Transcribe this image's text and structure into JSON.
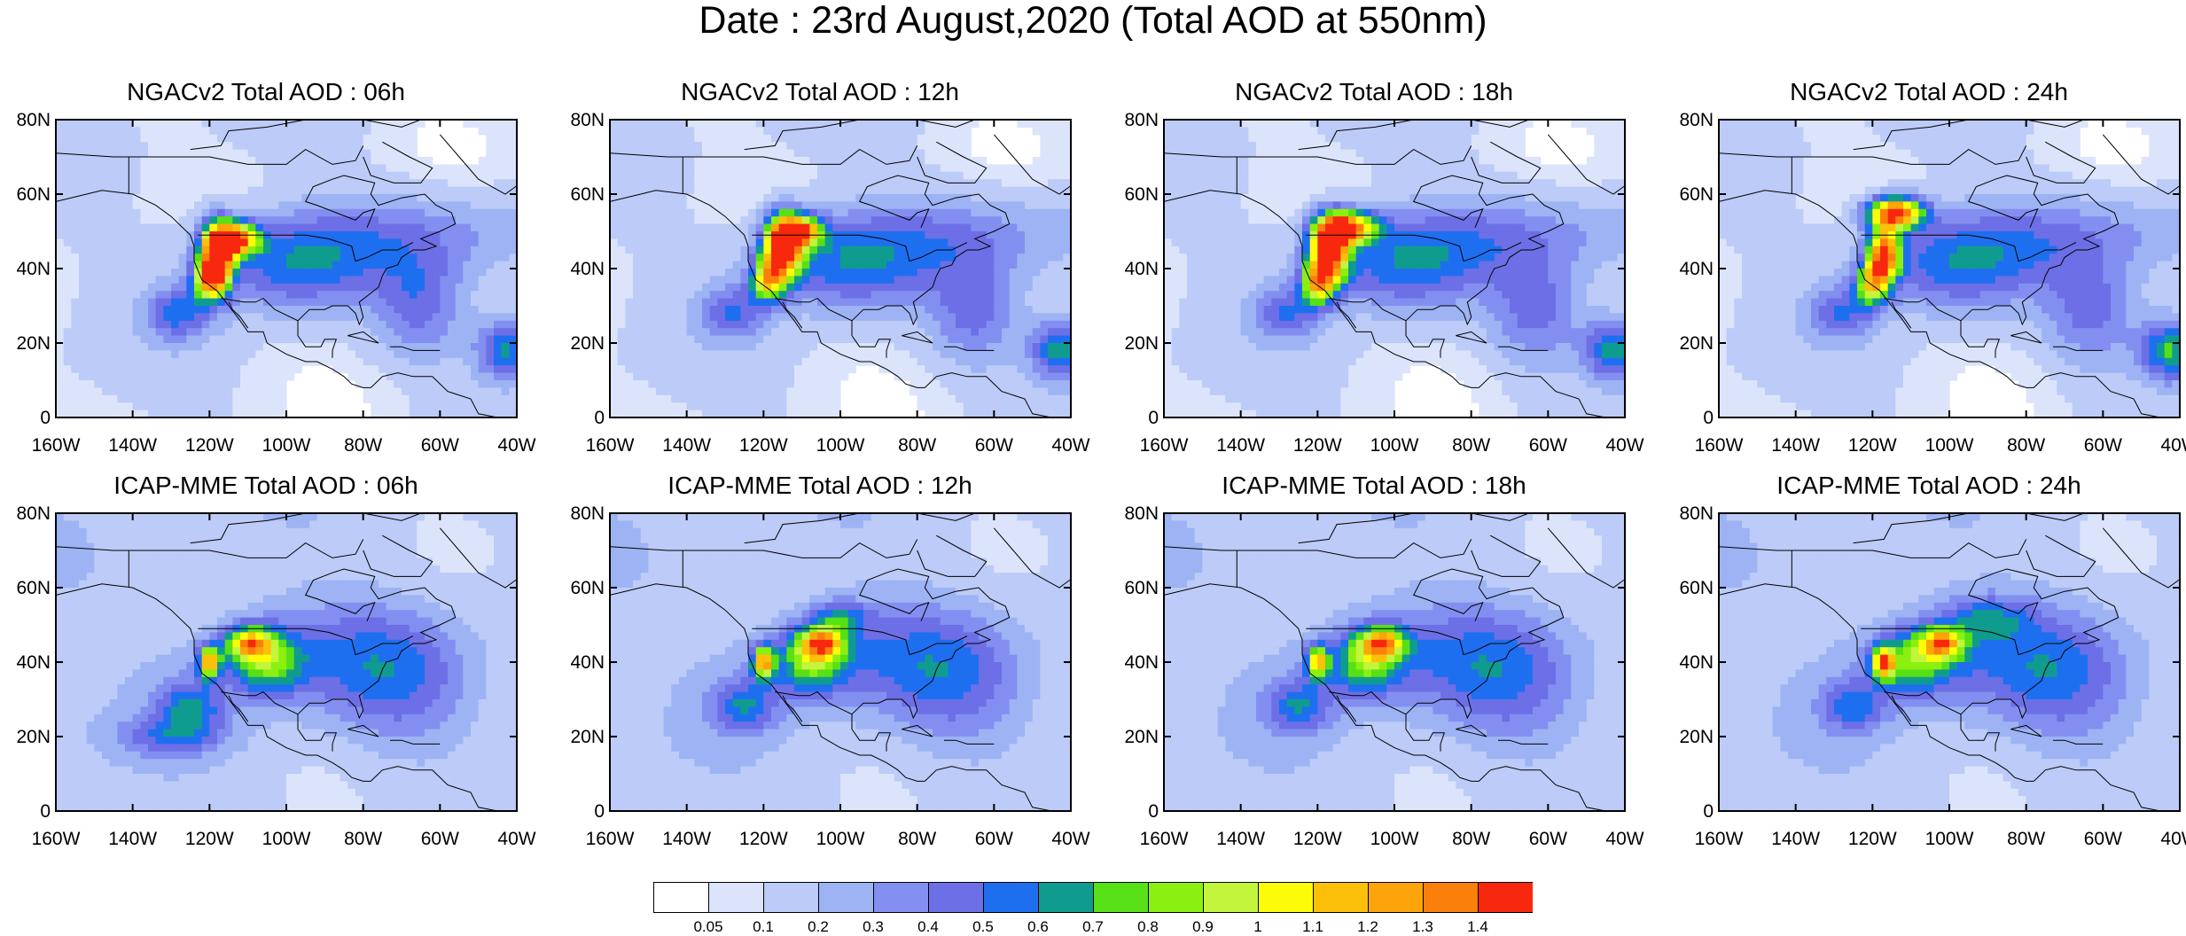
{
  "title": "Date : 23rd August,2020 (Total AOD at 550nm)",
  "colorbar": {
    "levels": [
      "0.05",
      "0.1",
      "0.2",
      "0.3",
      "0.4",
      "0.5",
      "0.6",
      "0.7",
      "0.8",
      "0.9",
      "1",
      "1.1",
      "1.2",
      "1.3",
      "1.4"
    ],
    "colors": [
      "#ffffff",
      "#dbe4fb",
      "#bccbf7",
      "#9db3f4",
      "#838ff0",
      "#6d6fe6",
      "#1e6ff0",
      "#0f9c8f",
      "#57e016",
      "#8bf00f",
      "#c2f53b",
      "#fcfc08",
      "#fcc00a",
      "#fca40a",
      "#fb800b",
      "#f8280e"
    ]
  },
  "axes": {
    "x_ticks": [
      "160W",
      "140W",
      "120W",
      "100W",
      "80W",
      "60W",
      "40W"
    ],
    "y_ticks": [
      "80N",
      "60N",
      "40N",
      "20N",
      "0"
    ]
  },
  "chart_data": [
    {
      "type": "heatmap",
      "title": "NGACv2 Total AOD : 06h",
      "xlim": [
        -160,
        -40
      ],
      "ylim": [
        0,
        80
      ],
      "background_aod": 0.1,
      "plumes": [
        {
          "lon": -118,
          "lat": 44,
          "aod": 1.4,
          "sx": 3,
          "sy": 6
        },
        {
          "lon": -113,
          "lat": 48,
          "aod": 1.2,
          "sx": 4,
          "sy": 3
        },
        {
          "lon": -120,
          "lat": 37,
          "aod": 0.8,
          "sx": 3,
          "sy": 4
        },
        {
          "lon": -128,
          "lat": 28,
          "aod": 0.4,
          "sx": 6,
          "sy": 5
        },
        {
          "lon": -95,
          "lat": 45,
          "aod": 0.3,
          "sx": 18,
          "sy": 8
        },
        {
          "lon": -65,
          "lat": 30,
          "aod": 0.3,
          "sx": 8,
          "sy": 10
        },
        {
          "lon": -42,
          "lat": 18,
          "aod": 0.55,
          "sx": 6,
          "sy": 6
        },
        {
          "lon": -100,
          "lat": 38,
          "aod": 0.25,
          "sx": 14,
          "sy": 8
        },
        {
          "lon": -60,
          "lat": 50,
          "aod": 0.2,
          "sx": 25,
          "sy": 8
        }
      ]
    },
    {
      "type": "heatmap",
      "title": "NGACv2 Total AOD : 12h",
      "xlim": [
        -160,
        -40
      ],
      "ylim": [
        0,
        80
      ],
      "background_aod": 0.1,
      "plumes": [
        {
          "lon": -115,
          "lat": 46,
          "aod": 1.4,
          "sx": 3.5,
          "sy": 6
        },
        {
          "lon": -110,
          "lat": 50,
          "aod": 1.0,
          "sx": 4,
          "sy": 3
        },
        {
          "lon": -119,
          "lat": 37,
          "aod": 0.8,
          "sx": 3,
          "sy": 4
        },
        {
          "lon": -128,
          "lat": 28,
          "aod": 0.35,
          "sx": 6,
          "sy": 5
        },
        {
          "lon": -95,
          "lat": 45,
          "aod": 0.3,
          "sx": 18,
          "sy": 8
        },
        {
          "lon": -65,
          "lat": 28,
          "aod": 0.3,
          "sx": 8,
          "sy": 10
        },
        {
          "lon": -42,
          "lat": 18,
          "aod": 0.6,
          "sx": 6,
          "sy": 6
        },
        {
          "lon": -100,
          "lat": 38,
          "aod": 0.25,
          "sx": 14,
          "sy": 8
        },
        {
          "lon": -60,
          "lat": 50,
          "aod": 0.2,
          "sx": 25,
          "sy": 8
        }
      ]
    },
    {
      "type": "heatmap",
      "title": "NGACv2 Total AOD : 18h",
      "xlim": [
        -160,
        -40
      ],
      "ylim": [
        0,
        80
      ],
      "background_aod": 0.1,
      "plumes": [
        {
          "lon": -117,
          "lat": 45,
          "aod": 1.4,
          "sx": 3.5,
          "sy": 6
        },
        {
          "lon": -112,
          "lat": 51,
          "aod": 1.2,
          "sx": 5,
          "sy": 3
        },
        {
          "lon": -120,
          "lat": 36,
          "aod": 0.8,
          "sx": 3,
          "sy": 4
        },
        {
          "lon": -128,
          "lat": 28,
          "aod": 0.35,
          "sx": 6,
          "sy": 5
        },
        {
          "lon": -95,
          "lat": 45,
          "aod": 0.3,
          "sx": 18,
          "sy": 8
        },
        {
          "lon": -63,
          "lat": 28,
          "aod": 0.3,
          "sx": 8,
          "sy": 10
        },
        {
          "lon": -42,
          "lat": 18,
          "aod": 0.6,
          "sx": 6,
          "sy": 6
        },
        {
          "lon": -100,
          "lat": 38,
          "aod": 0.25,
          "sx": 14,
          "sy": 8
        },
        {
          "lon": -60,
          "lat": 50,
          "aod": 0.2,
          "sx": 25,
          "sy": 8
        }
      ]
    },
    {
      "type": "heatmap",
      "title": "NGACv2 Total AOD : 24h",
      "xlim": [
        -160,
        -40
      ],
      "ylim": [
        0,
        80
      ],
      "background_aod": 0.1,
      "plumes": [
        {
          "lon": -114,
          "lat": 55,
          "aod": 1.4,
          "sx": 5,
          "sy": 3
        },
        {
          "lon": -117,
          "lat": 44,
          "aod": 1.2,
          "sx": 3,
          "sy": 5
        },
        {
          "lon": -120,
          "lat": 36,
          "aod": 0.8,
          "sx": 3,
          "sy": 4
        },
        {
          "lon": -128,
          "lat": 28,
          "aod": 0.35,
          "sx": 6,
          "sy": 5
        },
        {
          "lon": -95,
          "lat": 45,
          "aod": 0.3,
          "sx": 18,
          "sy": 8
        },
        {
          "lon": -63,
          "lat": 28,
          "aod": 0.3,
          "sx": 8,
          "sy": 10
        },
        {
          "lon": -42,
          "lat": 18,
          "aod": 0.65,
          "sx": 6,
          "sy": 6
        },
        {
          "lon": -100,
          "lat": 38,
          "aod": 0.25,
          "sx": 14,
          "sy": 8
        },
        {
          "lon": -60,
          "lat": 50,
          "aod": 0.2,
          "sx": 25,
          "sy": 8
        }
      ]
    },
    {
      "type": "heatmap",
      "title": "ICAP-MME Total AOD : 06h",
      "xlim": [
        -160,
        -40
      ],
      "ylim": [
        0,
        80
      ],
      "background_aod": 0.15,
      "plumes": [
        {
          "lon": -120,
          "lat": 40,
          "aod": 1.0,
          "sx": 2,
          "sy": 3
        },
        {
          "lon": -110,
          "lat": 45,
          "aod": 0.85,
          "sx": 4,
          "sy": 3
        },
        {
          "lon": -105,
          "lat": 40,
          "aod": 0.5,
          "sx": 6,
          "sy": 6
        },
        {
          "lon": -125,
          "lat": 28,
          "aod": 0.4,
          "sx": 6,
          "sy": 5
        },
        {
          "lon": -95,
          "lat": 42,
          "aod": 0.3,
          "sx": 20,
          "sy": 10
        },
        {
          "lon": -70,
          "lat": 35,
          "aod": 0.25,
          "sx": 12,
          "sy": 12
        },
        {
          "lon": -130,
          "lat": 20,
          "aod": 0.3,
          "sx": 10,
          "sy": 4
        }
      ]
    },
    {
      "type": "heatmap",
      "title": "ICAP-MME Total AOD : 12h",
      "xlim": [
        -160,
        -40
      ],
      "ylim": [
        0,
        80
      ],
      "background_aod": 0.15,
      "plumes": [
        {
          "lon": -120,
          "lat": 40,
          "aod": 1.0,
          "sx": 2,
          "sy": 3
        },
        {
          "lon": -105,
          "lat": 45,
          "aod": 0.85,
          "sx": 4,
          "sy": 3
        },
        {
          "lon": -108,
          "lat": 40,
          "aod": 0.5,
          "sx": 6,
          "sy": 6
        },
        {
          "lon": -125,
          "lat": 28,
          "aod": 0.4,
          "sx": 6,
          "sy": 5
        },
        {
          "lon": -95,
          "lat": 42,
          "aod": 0.3,
          "sx": 20,
          "sy": 10
        },
        {
          "lon": -70,
          "lat": 35,
          "aod": 0.25,
          "sx": 12,
          "sy": 12
        },
        {
          "lon": -100,
          "lat": 52,
          "aod": 0.35,
          "sx": 5,
          "sy": 3
        }
      ]
    },
    {
      "type": "heatmap",
      "title": "ICAP-MME Total AOD : 18h",
      "xlim": [
        -160,
        -40
      ],
      "ylim": [
        0,
        80
      ],
      "background_aod": 0.15,
      "plumes": [
        {
          "lon": -120,
          "lat": 40,
          "aod": 0.9,
          "sx": 2,
          "sy": 3
        },
        {
          "lon": -103,
          "lat": 45,
          "aod": 0.85,
          "sx": 4,
          "sy": 3
        },
        {
          "lon": -108,
          "lat": 40,
          "aod": 0.5,
          "sx": 6,
          "sy": 6
        },
        {
          "lon": -125,
          "lat": 28,
          "aod": 0.4,
          "sx": 6,
          "sy": 5
        },
        {
          "lon": -95,
          "lat": 42,
          "aod": 0.3,
          "sx": 20,
          "sy": 10
        },
        {
          "lon": -70,
          "lat": 35,
          "aod": 0.25,
          "sx": 12,
          "sy": 12
        }
      ]
    },
    {
      "type": "heatmap",
      "title": "ICAP-MME Total AOD : 24h",
      "xlim": [
        -160,
        -40
      ],
      "ylim": [
        0,
        80
      ],
      "background_aod": 0.15,
      "plumes": [
        {
          "lon": -117,
          "lat": 40,
          "aod": 0.9,
          "sx": 2,
          "sy": 3
        },
        {
          "lon": -102,
          "lat": 45,
          "aod": 0.85,
          "sx": 4,
          "sy": 3
        },
        {
          "lon": -110,
          "lat": 40,
          "aod": 0.5,
          "sx": 7,
          "sy": 6
        },
        {
          "lon": -125,
          "lat": 28,
          "aod": 0.35,
          "sx": 6,
          "sy": 5
        },
        {
          "lon": -95,
          "lat": 42,
          "aod": 0.3,
          "sx": 20,
          "sy": 10
        },
        {
          "lon": -70,
          "lat": 35,
          "aod": 0.25,
          "sx": 12,
          "sy": 12
        },
        {
          "lon": -90,
          "lat": 52,
          "aod": 0.3,
          "sx": 8,
          "sy": 4
        }
      ]
    }
  ]
}
